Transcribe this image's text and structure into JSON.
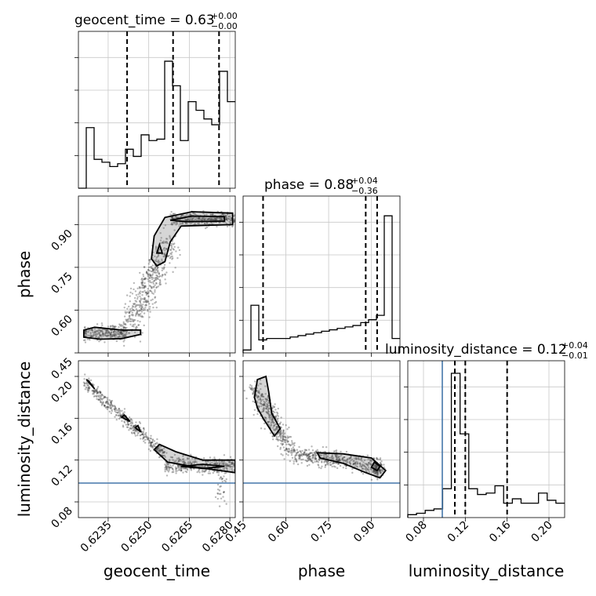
{
  "chart_data": {
    "type": "corner",
    "parameters": [
      {
        "name": "geocent_time",
        "range": [
          0.6224,
          0.6282
        ],
        "ticks": [
          0.6235,
          0.625,
          0.6265,
          0.628
        ],
        "tick_labels": [
          "0.6235",
          "0.6250",
          "0.6265",
          "0.6280"
        ],
        "title_main": "geocent_time = 0.63",
        "title_plus": "+0.00",
        "title_minus": "−0.00",
        "quantiles": [
          0.6242,
          0.6259,
          0.6276
        ]
      },
      {
        "name": "phase",
        "range": [
          0.45,
          1.0
        ],
        "ticks": [
          0.45,
          0.6,
          0.75,
          0.9
        ],
        "tick_labels": [
          "0.45",
          "0.60",
          "0.75",
          "0.90"
        ],
        "title_main": "phase = 0.88",
        "title_plus": "+0.04",
        "title_minus": "−0.36",
        "quantiles": [
          0.52,
          0.88,
          0.92
        ]
      },
      {
        "name": "luminosity_distance",
        "range": [
          0.065,
          0.215
        ],
        "ticks": [
          0.08,
          0.12,
          0.16,
          0.2
        ],
        "tick_labels": [
          "0.08",
          "0.12",
          "0.16",
          "0.20"
        ],
        "title_main": "luminosity_distance = 0.12",
        "title_plus": "+0.04",
        "title_minus": "−0.01",
        "quantiles": [
          0.11,
          0.12,
          0.16
        ]
      }
    ],
    "truths": {
      "luminosity_distance": 0.098
    },
    "histograms": {
      "geocent_time": [
        0,
        0.42,
        0.2,
        0.18,
        0.15,
        0.17,
        0.27,
        0.22,
        0.37,
        0.33,
        0.34,
        0.88,
        0.71,
        0.33,
        0.6,
        0.54,
        0.48,
        0.44,
        0.81,
        0.6
      ],
      "phase": [
        0.02,
        0.33,
        0.09,
        0.1,
        0.1,
        0.1,
        0.11,
        0.12,
        0.13,
        0.14,
        0.15,
        0.16,
        0.17,
        0.18,
        0.19,
        0.21,
        0.23,
        0.26,
        0.95,
        0.1
      ],
      "luminosity_distance": [
        0.02,
        0.03,
        0.05,
        0.06,
        0.2,
        1.0,
        0.58,
        0.2,
        0.16,
        0.17,
        0.22,
        0.1,
        0.13,
        0.1,
        0.1,
        0.17,
        0.12,
        0.1
      ]
    },
    "grid": true
  }
}
